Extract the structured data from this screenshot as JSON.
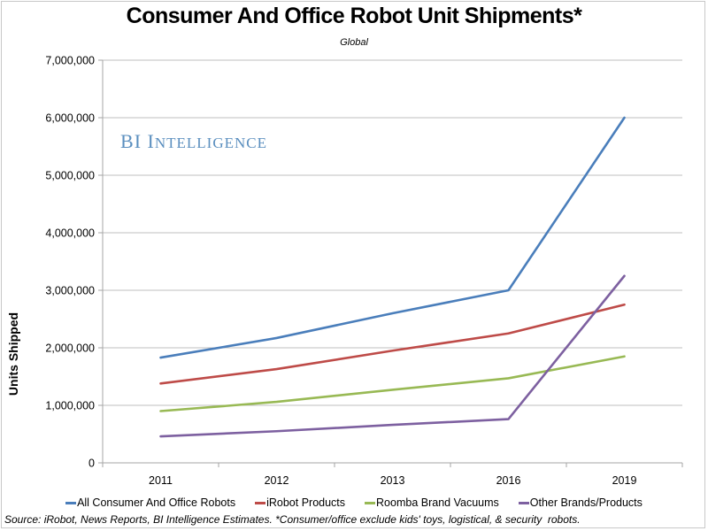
{
  "chart_data": {
    "type": "line",
    "title": "Consumer And Office Robot Unit Shipments*",
    "subtitle": "Global",
    "xlabel": "",
    "ylabel": "Units Shipped",
    "categories": [
      "2011",
      "2012",
      "2013",
      "2016",
      "2019"
    ],
    "ylim": [
      0,
      7000000
    ],
    "yticks": [
      0,
      1000000,
      2000000,
      3000000,
      4000000,
      5000000,
      6000000,
      7000000
    ],
    "ytick_labels": [
      "0",
      "1,000,000",
      "2,000,000",
      "3,000,000",
      "4,000,000",
      "5,000,000",
      "6,000,000",
      "7,000,000"
    ],
    "grid": true,
    "legend_position": "bottom",
    "series": [
      {
        "name": "All Consumer And Office Robots",
        "color": "#4A7EBB",
        "values": [
          1830000,
          2170000,
          2600000,
          3000000,
          6000000
        ]
      },
      {
        "name": "iRobot Products",
        "color": "#BE4B48",
        "values": [
          1380000,
          1630000,
          1950000,
          2250000,
          2750000
        ]
      },
      {
        "name": "Roomba Brand Vacuums",
        "color": "#98B954",
        "values": [
          900000,
          1060000,
          1270000,
          1470000,
          1850000
        ]
      },
      {
        "name": "Other Brands/Products",
        "color": "#7D60A0",
        "values": [
          460000,
          550000,
          660000,
          760000,
          3250000
        ]
      }
    ],
    "annotations": [
      "BI Intelligence"
    ],
    "source": "Source: iRobot, News Reports, BI Intelligence Estimates. *Consumer/office exclude kids' toys, logistical, & security  robots."
  }
}
